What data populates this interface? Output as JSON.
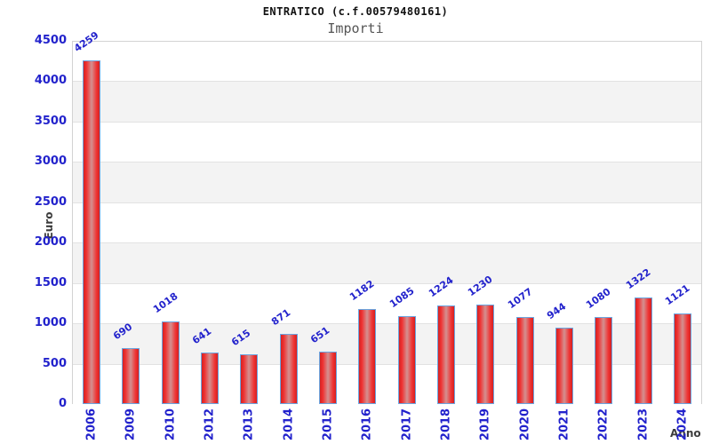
{
  "chart_data": {
    "type": "bar",
    "title": "ENTRATICO (c.f.00579480161)",
    "subtitle": "Importi",
    "xlabel": "Anno",
    "ylabel": "Euro",
    "categories": [
      "2006",
      "2009",
      "2010",
      "2012",
      "2013",
      "2014",
      "2015",
      "2016",
      "2017",
      "2018",
      "2019",
      "2020",
      "2021",
      "2022",
      "2023",
      "2024"
    ],
    "values": [
      4259,
      690,
      1018,
      641,
      615,
      871,
      651,
      1182,
      1085,
      1224,
      1230,
      1077,
      944,
      1080,
      1322,
      1121
    ],
    "ylim": [
      0,
      4500
    ],
    "ytick_step": 500,
    "yticks": [
      0,
      500,
      1000,
      1500,
      2000,
      2500,
      3000,
      3500,
      4000,
      4500
    ],
    "grid": "horizontal",
    "legend": "none",
    "background_bands": "alternating white and light gray per 500 units, white at top band",
    "colors": {
      "tick_label_blue": "#2222cc",
      "value_label_blue": "#2222cc",
      "bar_border_blue": "#6aa5e0",
      "bar_red_edge": "#d42121",
      "bar_red": "#ef3232",
      "bar_center_light": "#d49090",
      "band_gray": "#f3f3f3",
      "band_white": "#ffffff",
      "gridline_gray": "#e2e2e2",
      "axis_title_gray": "#3c3c3c",
      "title_black": "#111111",
      "subtitle_gray": "#565656"
    }
  }
}
